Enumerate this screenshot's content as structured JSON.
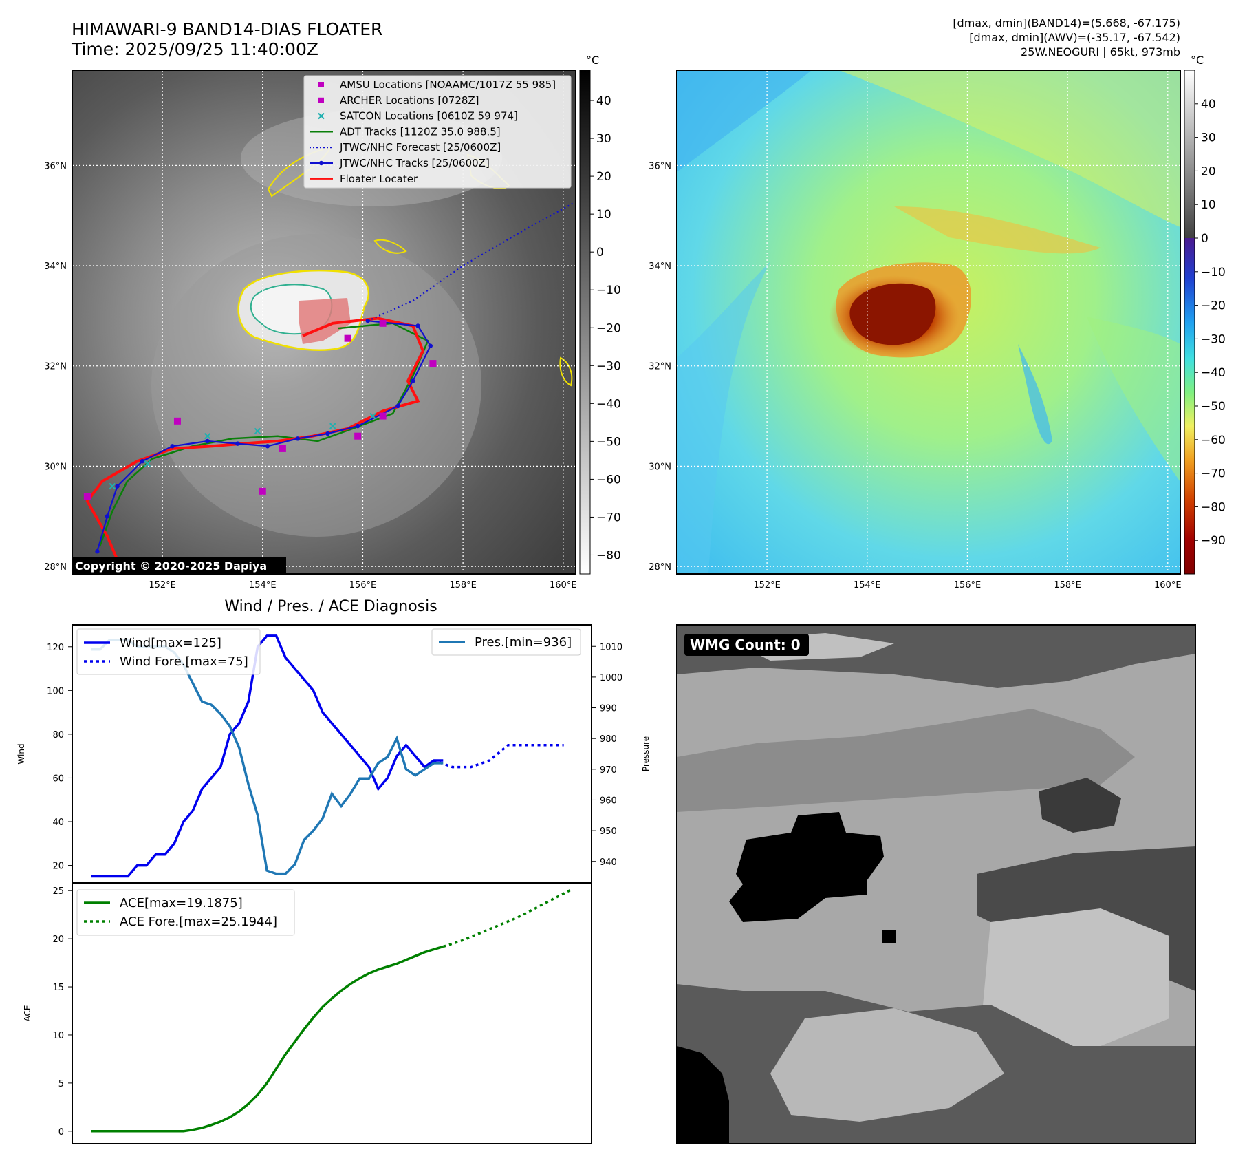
{
  "header": {
    "title": "HIMAWARI-9 BAND14-DIAS FLOATER",
    "time": "Time: 2025/09/25 11:40:00Z",
    "stats_band14": "[dmax, dmin](BAND14)=(5.668, -67.175)",
    "stats_awv": "[dmax, dmin](AWV)=(-35.17, -67.542)",
    "storm": "25W.NEOGURI | 65kt, 973mb",
    "copyright": "Copyright © 2020-2025 Dapiya",
    "diag_title": "Wind / Pres. / ACE Diagnosis",
    "wmg_count": "WMG Count: 0"
  },
  "legend_map": [
    {
      "label": "AMSU Locations [NOAAMC/1017Z 55 985]",
      "color": "#c000c0",
      "marker": "square"
    },
    {
      "label": "ARCHER Locations [0728Z]",
      "color": "#c000c0",
      "marker": "square"
    },
    {
      "label": "SATCON Locations [0610Z 59 974]",
      "color": "#20b0b0",
      "marker": "x"
    },
    {
      "label": "ADT Tracks [1120Z 35.0 988.5]",
      "color": "#0a7f0a",
      "marker": "line"
    },
    {
      "label": "JTWC/NHC Forecast [25/0600Z]",
      "color": "#1010d0",
      "marker": "dotted"
    },
    {
      "label": "JTWC/NHC Tracks [25/0600Z]",
      "color": "#1010d0",
      "marker": "line-dot"
    },
    {
      "label": "Floater Locater",
      "color": "#ff1010",
      "marker": "line"
    }
  ],
  "map_axes": {
    "lon_ticks": [
      "152°E",
      "154°E",
      "156°E",
      "158°E",
      "160°E"
    ],
    "lat_ticks": [
      "28°N",
      "30°N",
      "32°N",
      "34°N",
      "36°N"
    ],
    "lon_values": [
      152,
      154,
      156,
      158,
      160
    ],
    "lat_values": [
      28,
      30,
      32,
      34,
      36
    ],
    "lon_range": [
      150.2,
      160.25
    ],
    "lat_range": [
      27.85,
      37.9
    ]
  },
  "colorbar_left": {
    "unit": "°C",
    "ticks": [
      "40",
      "30",
      "20",
      "10",
      "0",
      "−10",
      "−20",
      "−30",
      "−40",
      "−50",
      "−60",
      "−70",
      "−80"
    ],
    "values": [
      40,
      30,
      20,
      10,
      0,
      -10,
      -20,
      -30,
      -40,
      -50,
      -60,
      -70,
      -80
    ],
    "range": [
      -85,
      48
    ]
  },
  "colorbar_right": {
    "unit": "°C",
    "ticks": [
      "40",
      "30",
      "20",
      "10",
      "0",
      "−10",
      "−20",
      "−30",
      "−40",
      "−50",
      "−60",
      "−70",
      "−80",
      "−90"
    ],
    "values": [
      40,
      30,
      20,
      10,
      0,
      -10,
      -20,
      -30,
      -40,
      -50,
      -60,
      -70,
      -80,
      -90
    ],
    "range": [
      -100,
      50
    ]
  },
  "tracks": {
    "jtwc": [
      [
        150.7,
        28.3
      ],
      [
        150.9,
        29.0
      ],
      [
        151.1,
        29.6
      ],
      [
        151.6,
        30.1
      ],
      [
        152.2,
        30.4
      ],
      [
        152.9,
        30.5
      ],
      [
        153.5,
        30.45
      ],
      [
        154.1,
        30.4
      ],
      [
        154.7,
        30.55
      ],
      [
        155.3,
        30.65
      ],
      [
        155.9,
        30.8
      ],
      [
        156.7,
        31.2
      ],
      [
        157.0,
        31.7
      ],
      [
        157.35,
        32.4
      ],
      [
        157.1,
        32.8
      ],
      [
        156.1,
        32.9
      ]
    ],
    "forecast": [
      [
        156.1,
        32.9
      ],
      [
        157.0,
        33.3
      ],
      [
        158.0,
        34.0
      ],
      [
        159.2,
        34.7
      ],
      [
        160.3,
        35.3
      ]
    ],
    "adt": [
      [
        150.75,
        28.4
      ],
      [
        151.0,
        29.1
      ],
      [
        151.3,
        29.7
      ],
      [
        151.8,
        30.15
      ],
      [
        152.6,
        30.4
      ],
      [
        153.4,
        30.55
      ],
      [
        154.3,
        30.6
      ],
      [
        155.1,
        30.5
      ],
      [
        155.8,
        30.75
      ],
      [
        156.6,
        31.05
      ],
      [
        157.0,
        31.8
      ],
      [
        157.3,
        32.5
      ],
      [
        156.6,
        32.85
      ],
      [
        155.5,
        32.75
      ]
    ],
    "floater": [
      [
        151.2,
        27.9
      ],
      [
        150.9,
        28.6
      ],
      [
        150.5,
        29.3
      ],
      [
        150.8,
        29.7
      ],
      [
        151.5,
        30.1
      ],
      [
        152.2,
        30.35
      ],
      [
        153.0,
        30.4
      ],
      [
        153.6,
        30.45
      ],
      [
        154.3,
        30.5
      ],
      [
        155.0,
        30.6
      ],
      [
        155.7,
        30.75
      ],
      [
        156.4,
        31.1
      ],
      [
        157.1,
        31.3
      ],
      [
        156.9,
        31.7
      ],
      [
        157.2,
        32.3
      ],
      [
        157.0,
        32.8
      ],
      [
        156.3,
        32.95
      ],
      [
        155.4,
        32.85
      ],
      [
        154.8,
        32.6
      ]
    ],
    "amsu": [
      [
        150.5,
        29.4
      ],
      [
        152.3,
        30.9
      ],
      [
        154.4,
        30.35
      ],
      [
        154.0,
        29.5
      ],
      [
        155.9,
        30.6
      ],
      [
        156.4,
        31.0
      ],
      [
        157.4,
        32.05
      ],
      [
        156.4,
        32.85
      ],
      [
        155.7,
        32.55
      ]
    ],
    "satcon": [
      [
        151.0,
        29.6
      ],
      [
        151.7,
        30.05
      ],
      [
        152.9,
        30.6
      ],
      [
        153.9,
        30.7
      ],
      [
        155.4,
        30.8
      ],
      [
        156.2,
        31.0
      ]
    ]
  },
  "chart_data": [
    {
      "type": "line",
      "title": "Wind / Pres. / ACE Diagnosis",
      "xlabel": "",
      "ylabel": "Wind",
      "ylabel_right": "Pressure",
      "y_ticks": [
        20,
        40,
        60,
        80,
        100,
        120
      ],
      "y2_ticks": [
        940,
        950,
        960,
        970,
        980,
        990,
        1000,
        1010
      ],
      "ylim": [
        12,
        130
      ],
      "y2lim": [
        933,
        1017
      ],
      "xlim": [
        -2,
        54
      ],
      "legend": [
        "Wind[max=125]",
        "Wind Fore.[max=75]",
        "Pres.[min=936]"
      ],
      "series": [
        {
          "name": "Wind[max=125]",
          "axis": "left",
          "style": "solid",
          "color": "#0000ee",
          "x": [
            0,
            1,
            2,
            3,
            4,
            5,
            6,
            7,
            8,
            9,
            10,
            11,
            12,
            13,
            14,
            15,
            16,
            17,
            18,
            19,
            20,
            21,
            22,
            23,
            24,
            25,
            26,
            27,
            28,
            29,
            30,
            31,
            32,
            33,
            34,
            35,
            36,
            37,
            38
          ],
          "values": [
            15,
            15,
            15,
            15,
            15,
            20,
            20,
            25,
            25,
            30,
            40,
            45,
            55,
            60,
            65,
            80,
            85,
            95,
            120,
            125,
            125,
            115,
            110,
            105,
            100,
            90,
            85,
            80,
            75,
            70,
            65,
            55,
            60,
            70,
            75,
            70,
            65,
            68,
            68
          ]
        },
        {
          "name": "Wind Fore.[max=75]",
          "axis": "left",
          "style": "dotted",
          "color": "#0000ee",
          "x": [
            37,
            39,
            41,
            43,
            45,
            47,
            49,
            51
          ],
          "values": [
            68,
            65,
            65,
            68,
            75,
            75,
            75,
            75
          ]
        },
        {
          "name": "Pres.[min=936]",
          "axis": "right",
          "style": "solid",
          "color": "#1f77b4",
          "x": [
            0,
            1,
            2,
            3,
            4,
            5,
            6,
            7,
            8,
            9,
            10,
            11,
            12,
            13,
            14,
            15,
            16,
            17,
            18,
            19,
            20,
            21,
            22,
            23,
            24,
            25,
            26,
            27,
            28,
            29,
            30,
            31,
            32,
            33,
            34,
            35,
            36,
            37,
            38
          ],
          "values": [
            1009,
            1009,
            1012,
            1012,
            1012,
            1010,
            1010,
            1010,
            1010,
            1008,
            1004,
            998,
            992,
            991,
            988,
            984,
            977,
            965,
            955,
            937,
            936,
            936,
            939,
            947,
            950,
            954,
            962,
            958,
            962,
            967,
            967,
            972,
            974,
            980,
            970,
            968,
            970,
            972,
            972
          ]
        }
      ]
    },
    {
      "type": "line",
      "title": "",
      "xlabel": "",
      "ylabel": "ACE",
      "y_ticks": [
        0,
        5,
        10,
        15,
        20,
        25
      ],
      "ylim": [
        -1.3,
        25.8
      ],
      "xlim": [
        -2,
        54
      ],
      "legend": [
        "ACE[max=19.1875]",
        "ACE Fore.[max=25.1944]"
      ],
      "series": [
        {
          "name": "ACE[max=19.1875]",
          "style": "solid",
          "color": "#008000",
          "x": [
            0,
            2,
            4,
            6,
            8,
            10,
            11,
            12,
            13,
            14,
            15,
            16,
            17,
            18,
            19,
            20,
            21,
            22,
            23,
            24,
            25,
            26,
            27,
            28,
            29,
            30,
            31,
            32,
            33,
            34,
            35,
            36,
            37,
            38
          ],
          "values": [
            0,
            0,
            0,
            0,
            0,
            0,
            0.15,
            0.35,
            0.65,
            1.0,
            1.45,
            2.05,
            2.85,
            3.8,
            5.0,
            6.5,
            8.0,
            9.3,
            10.6,
            11.8,
            12.9,
            13.8,
            14.6,
            15.3,
            15.9,
            16.4,
            16.8,
            17.1,
            17.4,
            17.8,
            18.2,
            18.6,
            18.9,
            19.1875
          ]
        },
        {
          "name": "ACE Fore.[max=25.1944]",
          "style": "dotted",
          "color": "#008000",
          "x": [
            38,
            40,
            42,
            44,
            46,
            48,
            50,
            52
          ],
          "values": [
            19.1875,
            19.8,
            20.6,
            21.4,
            22.2,
            23.2,
            24.2,
            25.1944
          ]
        }
      ]
    }
  ]
}
